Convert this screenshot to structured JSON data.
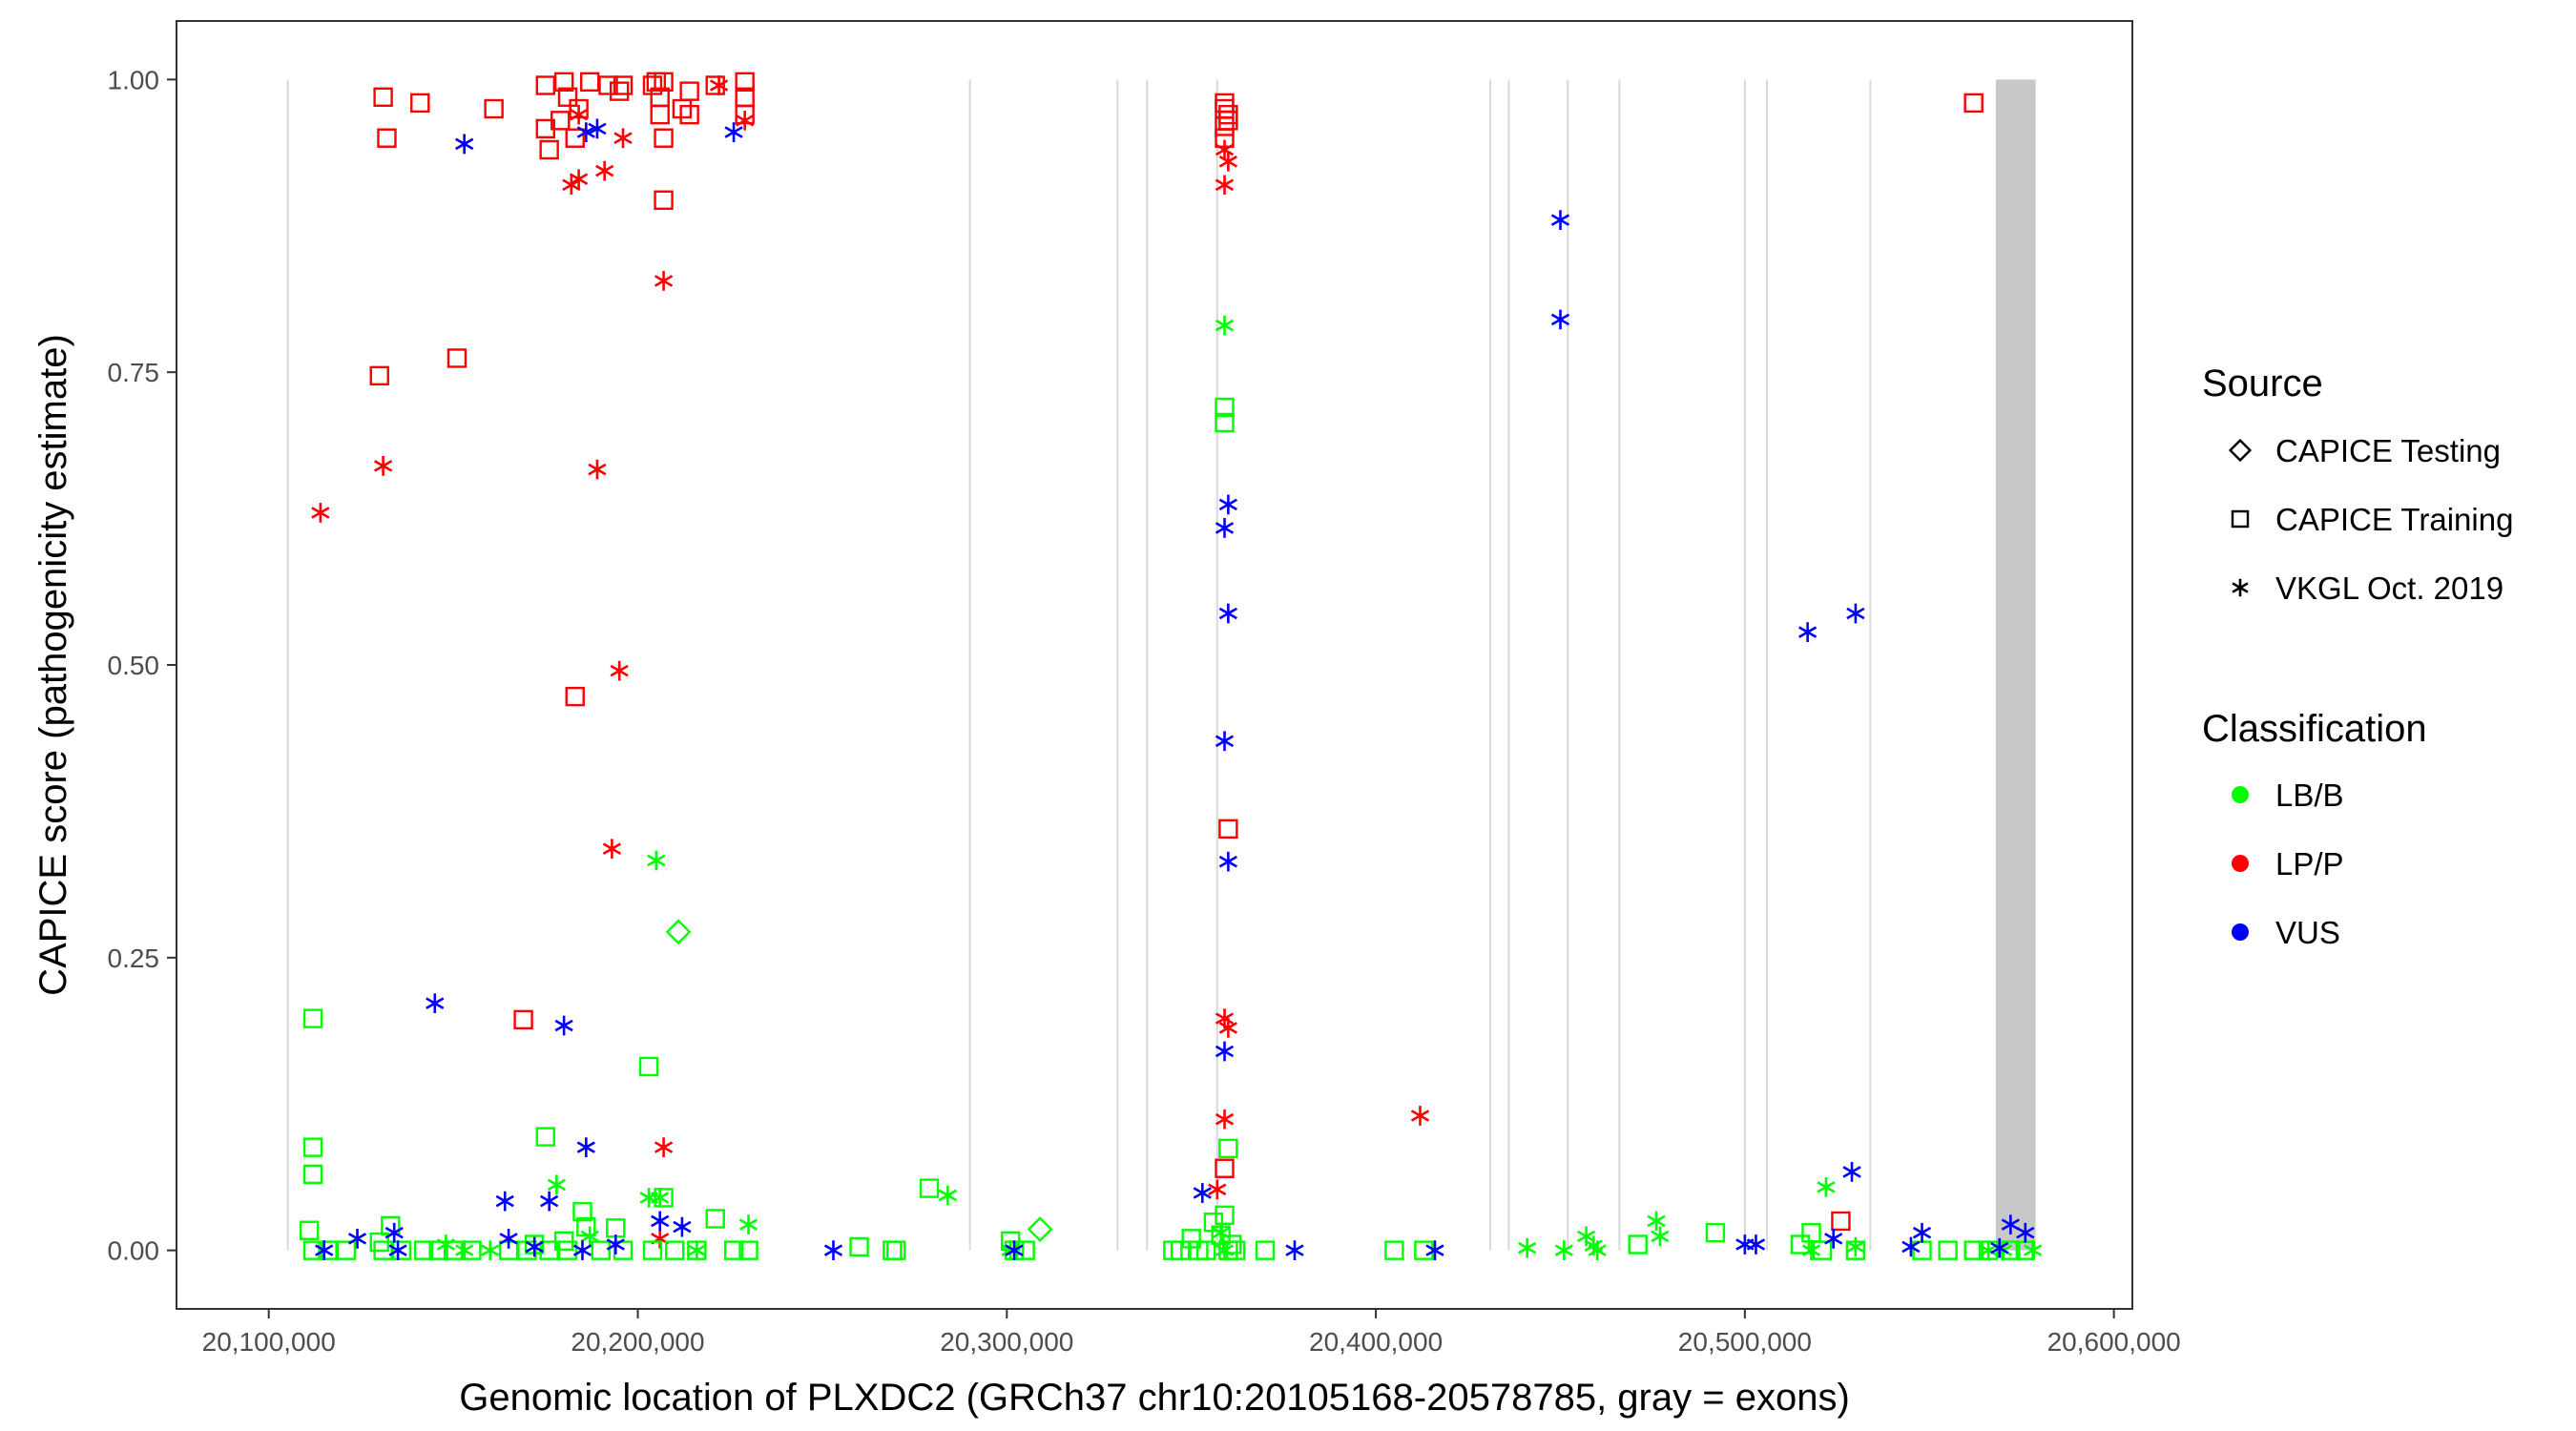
{
  "chart_data": {
    "type": "scatter",
    "xlabel": "Genomic location of PLXDC2 (GRCh37 chr10:20105168-20578785, gray = exons)",
    "ylabel": "CAPICE score (pathogenicity estimate)",
    "xlim": [
      20075000,
      20605000
    ],
    "ylim": [
      -0.05,
      1.05
    ],
    "x_ticks": [
      20100000,
      20200000,
      20300000,
      20400000,
      20500000,
      20600000
    ],
    "x_tick_labels": [
      "20,100,000",
      "20,200,000",
      "20,300,000",
      "20,400,000",
      "20,500,000",
      "20,600,000"
    ],
    "y_ticks": [
      0,
      0.25,
      0.5,
      0.75,
      1.0
    ],
    "y_tick_labels": [
      "0.00",
      "0.25",
      "0.50",
      "0.75",
      "1.00"
    ],
    "grid": false,
    "exons": [
      20105168,
      20290000,
      20330000,
      20338000,
      20357000,
      20431000,
      20436000,
      20452000,
      20466000,
      20500000,
      20506000,
      20534000,
      [
        20568000,
        20578785
      ]
    ],
    "legend": {
      "placement": "right",
      "source_title": "Source",
      "source_items": [
        {
          "label": "CAPICE Testing",
          "shape": "diamond"
        },
        {
          "label": "CAPICE Training",
          "shape": "square"
        },
        {
          "label": "VKGL Oct. 2019",
          "shape": "asterisk"
        }
      ],
      "class_title": "Classification",
      "class_items": [
        {
          "label": "LB/B",
          "color": "#00ff00"
        },
        {
          "label": "LP/P",
          "color": "#ff0000"
        },
        {
          "label": "VUS",
          "color": "#0000ff"
        }
      ]
    },
    "series": [
      {
        "classification": "LP/P",
        "source": "CAPICE Training",
        "shape": "square",
        "color": "#ff0000",
        "points": [
          [
            20131000,
            0.985
          ],
          [
            20132000,
            0.95
          ],
          [
            20141000,
            0.98
          ],
          [
            20161000,
            0.975
          ],
          [
            20175000,
            0.995
          ],
          [
            20175000,
            0.958
          ],
          [
            20176000,
            0.94
          ],
          [
            20179000,
            0.965
          ],
          [
            20180000,
            0.998
          ],
          [
            20181000,
            0.985
          ],
          [
            20183000,
            0.95
          ],
          [
            20184000,
            0.975
          ],
          [
            20187000,
            0.998
          ],
          [
            20192000,
            0.995
          ],
          [
            20195000,
            0.99
          ],
          [
            20196000,
            0.995
          ],
          [
            20204000,
            0.995
          ],
          [
            20205000,
            0.998
          ],
          [
            20206000,
            0.985
          ],
          [
            20206000,
            0.97
          ],
          [
            20207000,
            0.998
          ],
          [
            20207000,
            0.95
          ],
          [
            20212000,
            0.975
          ],
          [
            20214000,
            0.99
          ],
          [
            20214000,
            0.97
          ],
          [
            20221000,
            0.995
          ],
          [
            20229000,
            0.998
          ],
          [
            20229000,
            0.985
          ],
          [
            20229000,
            0.97
          ],
          [
            20207000,
            0.897
          ],
          [
            20130000,
            0.747
          ],
          [
            20151000,
            0.762
          ],
          [
            20183000,
            0.473
          ],
          [
            20169000,
            0.197
          ],
          [
            20359000,
            0.98
          ],
          [
            20359000,
            0.975
          ],
          [
            20360000,
            0.97
          ],
          [
            20360000,
            0.965
          ],
          [
            20359000,
            0.96
          ],
          [
            20359000,
            0.95
          ],
          [
            20360000,
            0.36
          ],
          [
            20359000,
            0.07
          ],
          [
            20526000,
            0.025
          ],
          [
            20562000,
            0.98
          ]
        ]
      },
      {
        "classification": "LP/P",
        "source": "VKGL Oct. 2019",
        "shape": "asterisk",
        "color": "#ff0000",
        "points": [
          [
            20153000,
            0.945
          ],
          [
            20182000,
            0.91
          ],
          [
            20184000,
            0.915
          ],
          [
            20184000,
            0.97
          ],
          [
            20191000,
            0.922
          ],
          [
            20196000,
            0.95
          ],
          [
            20222000,
            0.995
          ],
          [
            20229000,
            0.965
          ],
          [
            20207000,
            0.828
          ],
          [
            20114000,
            0.63
          ],
          [
            20131000,
            0.67
          ],
          [
            20189000,
            0.667
          ],
          [
            20195000,
            0.495
          ],
          [
            20193000,
            0.343
          ],
          [
            20207000,
            0.088
          ],
          [
            20206000,
            0.01
          ],
          [
            20359000,
            0.94
          ],
          [
            20360000,
            0.93
          ],
          [
            20359000,
            0.91
          ],
          [
            20359000,
            0.198
          ],
          [
            20360000,
            0.19
          ],
          [
            20359000,
            0.112
          ],
          [
            20357000,
            0.052
          ],
          [
            20412000,
            0.115
          ]
        ]
      },
      {
        "classification": "LB/B",
        "source": "CAPICE Training",
        "shape": "square",
        "color": "#00ff00",
        "points": [
          [
            20112000,
            0.198
          ],
          [
            20112000,
            0.088
          ],
          [
            20112000,
            0.065
          ],
          [
            20111000,
            0.017
          ],
          [
            20112000,
            0.0
          ],
          [
            20116000,
            0.0
          ],
          [
            20121000,
            0.0
          ],
          [
            20130000,
            0.007
          ],
          [
            20131000,
            0.0
          ],
          [
            20133000,
            0.021
          ],
          [
            20136000,
            0.0
          ],
          [
            20142000,
            0.0
          ],
          [
            20146000,
            0.0
          ],
          [
            20150000,
            0.0
          ],
          [
            20155000,
            0.0
          ],
          [
            20165000,
            0.0
          ],
          [
            20170000,
            0.0
          ],
          [
            20175000,
            0.097
          ],
          [
            20172000,
            0.005
          ],
          [
            20176000,
            0.0
          ],
          [
            20180000,
            0.008
          ],
          [
            20181000,
            0.0
          ],
          [
            20185000,
            0.033
          ],
          [
            20186000,
            0.02
          ],
          [
            20190000,
            0.0
          ],
          [
            20194000,
            0.019
          ],
          [
            20196000,
            0.0
          ],
          [
            20203000,
            0.157
          ],
          [
            20204000,
            0.0
          ],
          [
            20207000,
            0.045
          ],
          [
            20210000,
            0.0
          ],
          [
            20216000,
            0.0
          ],
          [
            20221000,
            0.027
          ],
          [
            20226000,
            0.0
          ],
          [
            20230000,
            0.0
          ],
          [
            20260000,
            0.003
          ],
          [
            20269000,
            0.0
          ],
          [
            20270000,
            0.0
          ],
          [
            20279000,
            0.053
          ],
          [
            20301000,
            0.008
          ],
          [
            20302000,
            0.0
          ],
          [
            20305000,
            0.0
          ],
          [
            20345000,
            0.0
          ],
          [
            20347000,
            0.0
          ],
          [
            20350000,
            0.01
          ],
          [
            20352000,
            0.0
          ],
          [
            20354000,
            0.0
          ],
          [
            20356000,
            0.024
          ],
          [
            20358000,
            0.013
          ],
          [
            20359000,
            0.03
          ],
          [
            20360000,
            0.0
          ],
          [
            20361000,
            0.005
          ],
          [
            20362000,
            0.0
          ],
          [
            20359000,
            0.72
          ],
          [
            20359000,
            0.707
          ],
          [
            20360000,
            0.087
          ],
          [
            20370000,
            0.0
          ],
          [
            20405000,
            0.0
          ],
          [
            20413000,
            0.0
          ],
          [
            20471000,
            0.005
          ],
          [
            20492000,
            0.015
          ],
          [
            20515000,
            0.005
          ],
          [
            20518000,
            0.015
          ],
          [
            20521000,
            0.0
          ],
          [
            20530000,
            0.0
          ],
          [
            20548000,
            0.0
          ],
          [
            20555000,
            0.0
          ],
          [
            20562000,
            0.0
          ],
          [
            20566000,
            0.0
          ],
          [
            20572000,
            0.0
          ],
          [
            20576000,
            0.0
          ]
        ]
      },
      {
        "classification": "LB/B",
        "source": "VKGL Oct. 2019",
        "shape": "asterisk",
        "color": "#00ff00",
        "points": [
          [
            20205000,
            0.333
          ],
          [
            20178000,
            0.056
          ],
          [
            20187000,
            0.012
          ],
          [
            20203000,
            0.045
          ],
          [
            20206000,
            0.045
          ],
          [
            20230000,
            0.022
          ],
          [
            20284000,
            0.047
          ],
          [
            20301000,
            0.0
          ],
          [
            20148000,
            0.005
          ],
          [
            20153000,
            0.0
          ],
          [
            20160000,
            0.0
          ],
          [
            20216000,
            0.0
          ],
          [
            20359000,
            0.79
          ],
          [
            20358000,
            0.015
          ],
          [
            20359000,
            0.0
          ],
          [
            20441000,
            0.002
          ],
          [
            20451000,
            0.0
          ],
          [
            20457000,
            0.012
          ],
          [
            20459000,
            0.004
          ],
          [
            20460000,
            0.0
          ],
          [
            20476000,
            0.025
          ],
          [
            20477000,
            0.012
          ],
          [
            20518000,
            0.0
          ],
          [
            20522000,
            0.054
          ],
          [
            20530000,
            0.003
          ],
          [
            20566000,
            0.0
          ],
          [
            20570000,
            0.0
          ],
          [
            20578000,
            0.0
          ]
        ]
      },
      {
        "classification": "LB/B",
        "source": "CAPICE Testing",
        "shape": "diamond",
        "color": "#00ff00",
        "points": [
          [
            20211000,
            0.272
          ],
          [
            20309000,
            0.018
          ]
        ]
      },
      {
        "classification": "VUS",
        "source": "VKGL Oct. 2019",
        "shape": "asterisk",
        "color": "#0000ff",
        "points": [
          [
            20153000,
            0.945
          ],
          [
            20186000,
            0.955
          ],
          [
            20189000,
            0.958
          ],
          [
            20226000,
            0.955
          ],
          [
            20145000,
            0.211
          ],
          [
            20180000,
            0.192
          ],
          [
            20186000,
            0.088
          ],
          [
            20164000,
            0.042
          ],
          [
            20176000,
            0.042
          ],
          [
            20124000,
            0.01
          ],
          [
            20134000,
            0.015
          ],
          [
            20135000,
            0.0
          ],
          [
            20165000,
            0.01
          ],
          [
            20172000,
            0.003
          ],
          [
            20185000,
            0.0
          ],
          [
            20194000,
            0.005
          ],
          [
            20206000,
            0.025
          ],
          [
            20212000,
            0.02
          ],
          [
            20115000,
            0.0
          ],
          [
            20253000,
            0.0
          ],
          [
            20302000,
            0.0
          ],
          [
            20353000,
            0.049
          ],
          [
            20360000,
            0.637
          ],
          [
            20359000,
            0.617
          ],
          [
            20360000,
            0.544
          ],
          [
            20359000,
            0.435
          ],
          [
            20360000,
            0.332
          ],
          [
            20359000,
            0.17
          ],
          [
            20378000,
            0.0
          ],
          [
            20416000,
            0.0
          ],
          [
            20450000,
            0.88
          ],
          [
            20450000,
            0.795
          ],
          [
            20500000,
            0.005
          ],
          [
            20503000,
            0.005
          ],
          [
            20517000,
            0.528
          ],
          [
            20530000,
            0.544
          ],
          [
            20529000,
            0.067
          ],
          [
            20524000,
            0.01
          ],
          [
            20545000,
            0.003
          ],
          [
            20548000,
            0.015
          ],
          [
            20572000,
            0.022
          ],
          [
            20576000,
            0.015
          ],
          [
            20569000,
            0.002
          ]
        ]
      }
    ]
  }
}
